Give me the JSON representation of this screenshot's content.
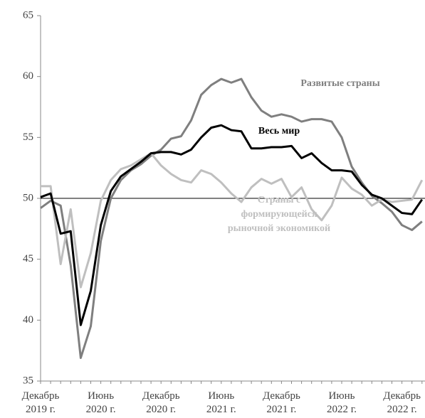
{
  "chart_data": {
    "type": "line",
    "categories": [
      "Декабрь 2019 г.",
      null,
      null,
      null,
      null,
      null,
      "Июнь 2020 г.",
      null,
      null,
      null,
      null,
      null,
      "Декабрь 2020 г.",
      null,
      null,
      null,
      null,
      null,
      "Июнь 2021 г.",
      null,
      null,
      null,
      null,
      null,
      "Декабрь 2021 г.",
      null,
      null,
      null,
      null,
      null,
      "Июнь 2022 г.",
      null,
      null,
      null,
      null,
      null,
      "Декабрь 2022 г.",
      null,
      null
    ],
    "series": [
      {
        "name": "Развитые страны",
        "color": "#7f7f7f",
        "values": [
          49.2,
          49.8,
          49.4,
          44.5,
          36.9,
          39.5,
          46.5,
          50.0,
          51.5,
          52.3,
          52.8,
          53.5,
          54.0,
          54.9,
          55.1,
          56.4,
          58.5,
          59.3,
          59.8,
          59.5,
          59.8,
          58.3,
          57.2,
          56.7,
          56.9,
          56.7,
          56.3,
          56.5,
          56.5,
          56.3,
          55.0,
          52.6,
          51.3,
          50.2,
          49.6,
          48.9,
          47.8,
          47.4,
          48.1
        ]
      },
      {
        "name": "Страны с формирующейся рыночной экономикой",
        "color": "#bfbfbf",
        "values": [
          51.0,
          51.0,
          44.6,
          49.1,
          42.7,
          45.5,
          49.8,
          51.5,
          52.4,
          52.7,
          53.2,
          53.7,
          52.7,
          52.0,
          51.5,
          51.3,
          52.3,
          52.0,
          51.3,
          50.4,
          49.7,
          50.9,
          51.6,
          51.2,
          51.6,
          50.1,
          50.9,
          49.1,
          48.2,
          49.4,
          51.7,
          50.8,
          50.3,
          49.4,
          49.9,
          49.7,
          49.8,
          49.9,
          51.5
        ]
      },
      {
        "name": "Весь мир",
        "color": "#000000",
        "values": [
          50.1,
          50.4,
          47.1,
          47.3,
          39.6,
          42.4,
          47.8,
          50.6,
          51.8,
          52.4,
          53.0,
          53.7,
          53.8,
          53.8,
          53.6,
          54.0,
          55.0,
          55.8,
          56.0,
          55.6,
          55.5,
          54.1,
          54.1,
          54.2,
          54.2,
          54.3,
          53.3,
          53.7,
          52.9,
          52.3,
          52.3,
          52.2,
          51.1,
          50.3,
          50.0,
          49.4,
          48.8,
          48.7,
          49.9
        ]
      }
    ],
    "ylim": [
      35,
      65
    ],
    "yticks": [
      35,
      40,
      45,
      50,
      55,
      60,
      65
    ],
    "reference_line": 50
  }
}
